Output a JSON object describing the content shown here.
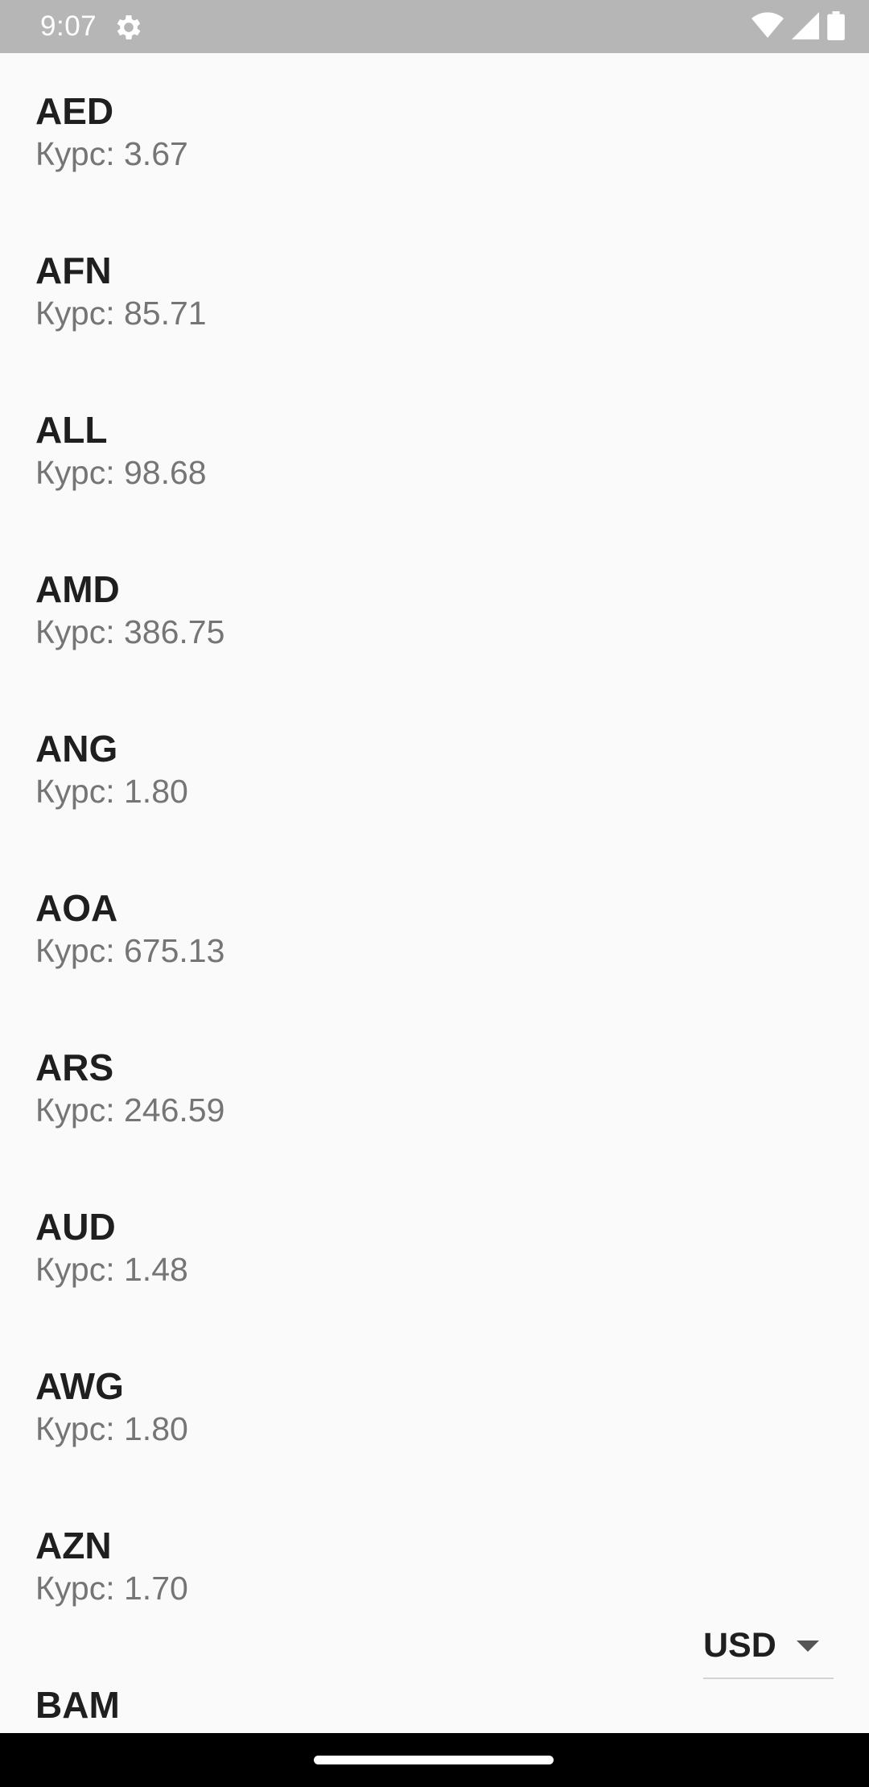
{
  "status_bar": {
    "time": "9:07",
    "icons": [
      "settings-gear-icon",
      "wifi-icon",
      "cell-signal-icon",
      "battery-icon"
    ]
  },
  "rate_label_prefix": "Курс:",
  "rates": [
    {
      "code": "AED",
      "rate": "Курс: 3.67"
    },
    {
      "code": "AFN",
      "rate": "Курс: 85.71"
    },
    {
      "code": "ALL",
      "rate": "Курс: 98.68"
    },
    {
      "code": "AMD",
      "rate": "Курс: 386.75"
    },
    {
      "code": "ANG",
      "rate": "Курс: 1.80"
    },
    {
      "code": "AOA",
      "rate": "Курс: 675.13"
    },
    {
      "code": "ARS",
      "rate": "Курс: 246.59"
    },
    {
      "code": "AUD",
      "rate": "Курс: 1.48"
    },
    {
      "code": "AWG",
      "rate": "Курс: 1.80"
    },
    {
      "code": "AZN",
      "rate": "Курс: 1.70"
    },
    {
      "code": "BAM",
      "rate": ""
    }
  ],
  "base_currency": {
    "selected": "USD"
  },
  "colors": {
    "status_bar": "#b6b6b6",
    "background": "#fafafa",
    "code_text": "#1f1f1f",
    "rate_text": "#757575",
    "nav_bar": "#000000"
  }
}
